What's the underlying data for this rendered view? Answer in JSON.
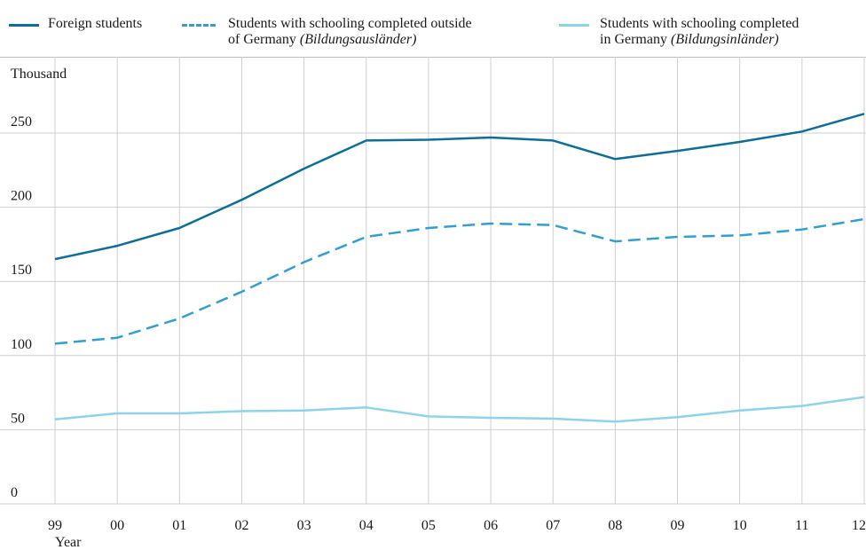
{
  "chart_data": {
    "type": "line",
    "ylabel": "Thousand",
    "xlabel": "Year",
    "x": [
      "99",
      "00",
      "01",
      "02",
      "03",
      "04",
      "05",
      "06",
      "07",
      "08",
      "09",
      "10",
      "11",
      "12"
    ],
    "ylim": [
      0,
      250
    ],
    "yticks": [
      0,
      50,
      100,
      150,
      200,
      250
    ],
    "grid": true,
    "legend_position": "top",
    "series": [
      {
        "name": "Foreign students",
        "style": "solid",
        "color": "#0d6e9b",
        "values": [
          165,
          174,
          186,
          205,
          226,
          245,
          245.5,
          247,
          245,
          232.5,
          238,
          244,
          251,
          263
        ]
      },
      {
        "name": "Students with schooling completed outside of Germany (Bildungsausländer)",
        "name_plain": "Students with schooling completed outside",
        "name_line2": "of Germany",
        "name_italic": "(Bildungsausländer)",
        "style": "dashed",
        "color": "#2f9fd6",
        "values": [
          108,
          112,
          125,
          143,
          163,
          180,
          186,
          189,
          188,
          177,
          180,
          181,
          185,
          192
        ]
      },
      {
        "name": "Students with schooling completed in Germany (Bildungsinländer)",
        "name_plain": "Students with schooling completed",
        "name_line2": "in Germany",
        "name_italic": "(Bildungsinländer)",
        "style": "solid",
        "color": "#8ed3ec",
        "values": [
          57,
          61,
          61,
          62.5,
          63,
          65,
          59,
          58,
          57.5,
          55.5,
          58.5,
          63,
          66,
          72
        ]
      }
    ]
  }
}
